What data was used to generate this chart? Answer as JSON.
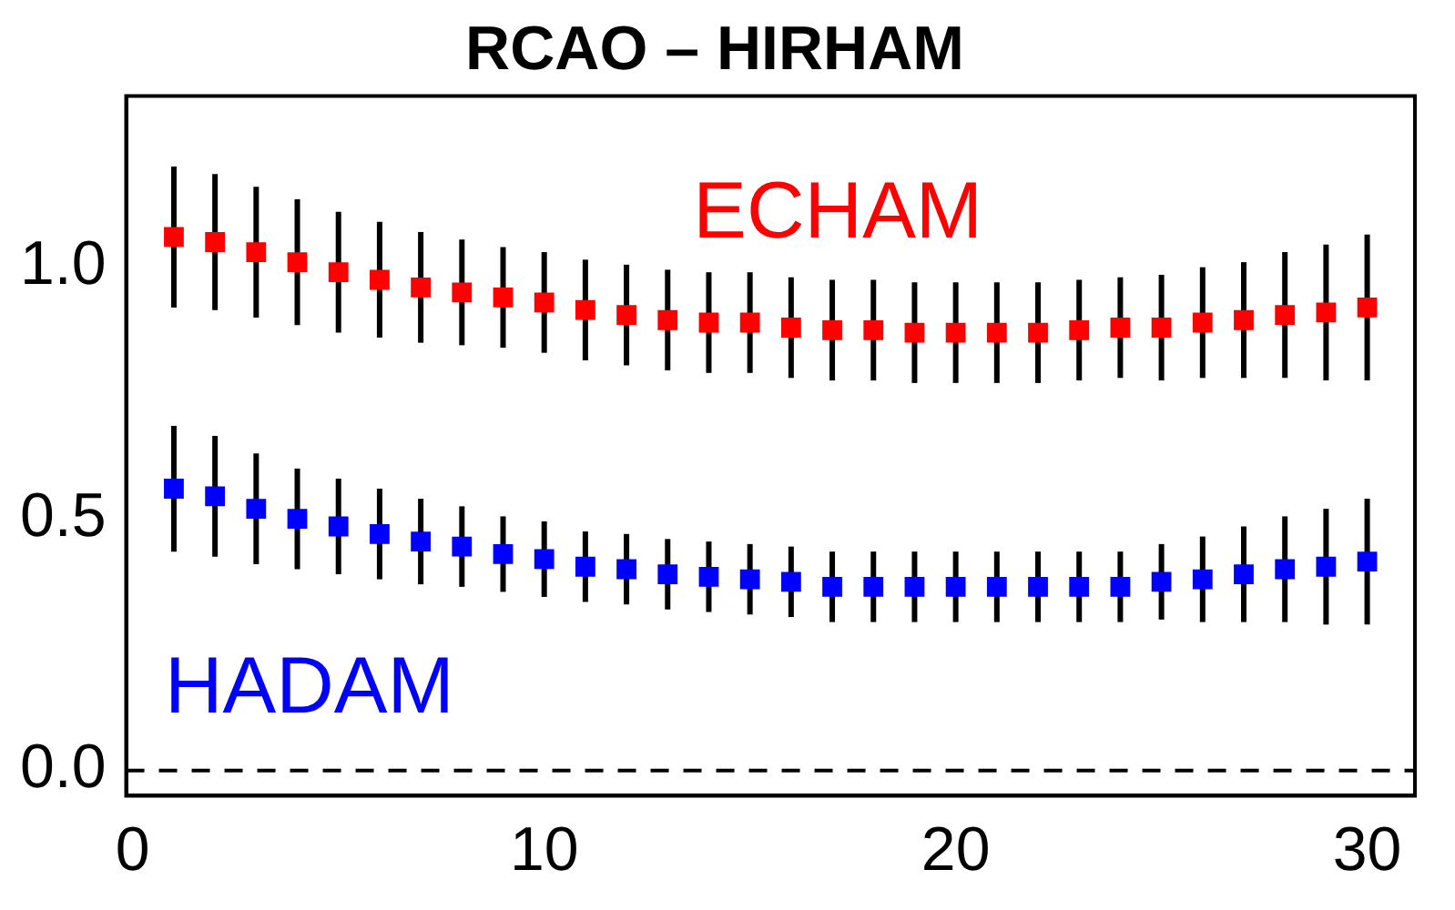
{
  "chart_data": {
    "type": "scatter",
    "title": "RCAO – HIRHAM",
    "x": [
      1,
      2,
      3,
      4,
      5,
      6,
      7,
      8,
      9,
      10,
      11,
      12,
      13,
      14,
      15,
      16,
      17,
      18,
      19,
      20,
      21,
      22,
      23,
      24,
      25,
      26,
      27,
      28,
      29,
      30
    ],
    "series": [
      {
        "name": "ECHAM",
        "color": "#ff0000",
        "values": [
          1.06,
          1.05,
          1.03,
          1.01,
          0.99,
          0.975,
          0.96,
          0.95,
          0.94,
          0.93,
          0.915,
          0.905,
          0.895,
          0.89,
          0.89,
          0.88,
          0.875,
          0.875,
          0.87,
          0.87,
          0.87,
          0.87,
          0.875,
          0.88,
          0.88,
          0.89,
          0.895,
          0.905,
          0.91,
          0.92
        ],
        "errors": [
          0.14,
          0.135,
          0.13,
          0.125,
          0.12,
          0.115,
          0.11,
          0.105,
          0.1,
          0.1,
          0.1,
          0.1,
          0.1,
          0.1,
          0.1,
          0.1,
          0.1,
          0.1,
          0.1,
          0.1,
          0.1,
          0.1,
          0.1,
          0.1,
          0.105,
          0.11,
          0.115,
          0.125,
          0.135,
          0.145
        ]
      },
      {
        "name": "HADAM",
        "color": "#0000ff",
        "values": [
          0.56,
          0.545,
          0.52,
          0.5,
          0.485,
          0.47,
          0.455,
          0.445,
          0.43,
          0.42,
          0.405,
          0.4,
          0.39,
          0.385,
          0.38,
          0.375,
          0.365,
          0.365,
          0.365,
          0.365,
          0.365,
          0.365,
          0.365,
          0.365,
          0.375,
          0.38,
          0.39,
          0.4,
          0.405,
          0.415
        ],
        "errors": [
          0.125,
          0.12,
          0.11,
          0.1,
          0.095,
          0.09,
          0.085,
          0.08,
          0.075,
          0.075,
          0.07,
          0.07,
          0.07,
          0.07,
          0.07,
          0.07,
          0.07,
          0.07,
          0.07,
          0.07,
          0.07,
          0.07,
          0.07,
          0.07,
          0.075,
          0.085,
          0.095,
          0.105,
          0.115,
          0.125
        ]
      }
    ],
    "xlim": [
      -0.16,
      31.16
    ],
    "xticks": [
      0,
      10,
      20,
      30
    ],
    "ylim": [
      -0.05,
      1.34
    ],
    "yticks": [
      {
        "value": 0,
        "label": "0.0"
      },
      {
        "value": 0.5,
        "label": "0.5"
      },
      {
        "value": 1,
        "label": "1.0"
      }
    ],
    "ref_lines": [
      {
        "axis": "y",
        "value": 0,
        "line_style": "dashed",
        "color": "#000000"
      }
    ],
    "grid": false,
    "legend": false,
    "marker": "square"
  }
}
